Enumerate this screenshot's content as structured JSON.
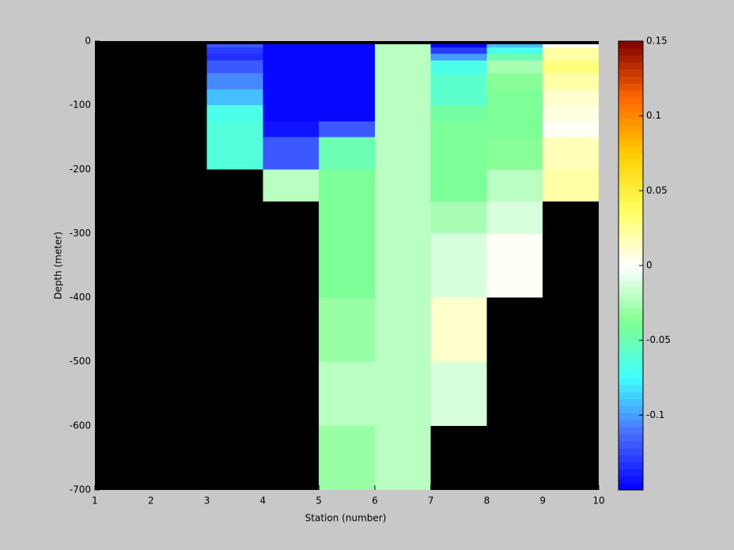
{
  "chart_data": {
    "type": "heatmap",
    "xlabel": "Station (number)",
    "ylabel": "Depth (meter)",
    "x": [
      1,
      2,
      3,
      4,
      5,
      6,
      7,
      8,
      9,
      10
    ],
    "y": [
      0,
      -5,
      -10,
      -20,
      -30,
      -50,
      -75,
      -100,
      -125,
      -150,
      -200,
      -250,
      -300,
      -400,
      -500,
      -600,
      -700
    ],
    "values": [
      [
        null,
        null,
        null,
        null,
        null,
        null,
        null,
        null,
        null
      ],
      [
        null,
        null,
        -0.12,
        -0.15,
        -0.15,
        -0.02,
        -0.15,
        -0.09,
        0.001
      ],
      [
        null,
        null,
        -0.13,
        -0.15,
        -0.15,
        -0.02,
        -0.13,
        -0.07,
        0.02
      ],
      [
        null,
        null,
        -0.135,
        -0.15,
        -0.15,
        -0.02,
        -0.1,
        -0.05,
        0.02
      ],
      [
        null,
        null,
        -0.12,
        -0.15,
        -0.15,
        -0.02,
        -0.07,
        -0.025,
        0.03
      ],
      [
        null,
        null,
        -0.105,
        -0.15,
        -0.15,
        -0.02,
        -0.06,
        -0.035,
        0.02
      ],
      [
        null,
        null,
        -0.09,
        -0.15,
        -0.15,
        -0.02,
        -0.06,
        -0.04,
        0.01
      ],
      [
        null,
        null,
        -0.07,
        -0.15,
        -0.15,
        -0.02,
        -0.045,
        -0.04,
        0.005
      ],
      [
        null,
        null,
        -0.065,
        -0.145,
        -0.12,
        -0.02,
        -0.04,
        -0.04,
        0.004
      ],
      [
        null,
        null,
        -0.065,
        -0.12,
        -0.05,
        -0.02,
        -0.04,
        -0.035,
        0.015
      ],
      [
        null,
        null,
        null,
        -0.02,
        -0.04,
        -0.02,
        -0.04,
        -0.02,
        0.02
      ],
      [
        null,
        null,
        null,
        null,
        -0.04,
        -0.02,
        -0.025,
        -0.01,
        null
      ],
      [
        null,
        null,
        null,
        null,
        -0.04,
        -0.02,
        -0.01,
        0.002,
        null
      ],
      [
        null,
        null,
        null,
        null,
        -0.03,
        -0.02,
        0.01,
        null,
        null
      ],
      [
        null,
        null,
        null,
        null,
        -0.02,
        -0.02,
        -0.01,
        null,
        null
      ],
      [
        null,
        null,
        null,
        null,
        -0.03,
        -0.02,
        null,
        null,
        null
      ]
    ],
    "xlim": [
      1,
      10
    ],
    "ylim": [
      -700,
      0
    ],
    "xticks": [
      1,
      2,
      3,
      4,
      5,
      6,
      7,
      8,
      9,
      10
    ],
    "yticks": [
      -700,
      -600,
      -500,
      -400,
      -300,
      -200,
      -100,
      0
    ],
    "clim": [
      -0.15,
      0.15
    ],
    "cticks": [
      -0.1,
      -0.05,
      0,
      0.05,
      0.1,
      0.15
    ],
    "colormap": [
      "#0000ff",
      "#4a6cff",
      "#40ffff",
      "#80ff90",
      "#ffffff",
      "#ffff60",
      "#ffcc00",
      "#ff6600",
      "#800000"
    ],
    "missing_color": "#000000"
  }
}
